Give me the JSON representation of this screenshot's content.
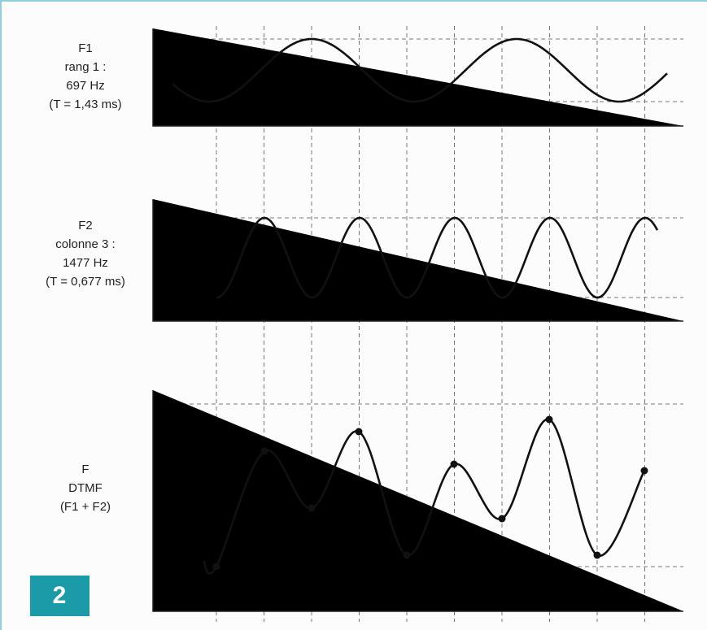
{
  "panels": [
    {
      "lines": [
        "F1",
        "rang 1 :",
        "697 Hz",
        "(T = 1,43 ms)"
      ]
    },
    {
      "lines": [
        "F2",
        "colonne 3 :",
        "1477 Hz",
        "(T = 0,677 ms)"
      ]
    },
    {
      "lines": [
        "F",
        "DTMF",
        "(F1 + F2)"
      ]
    }
  ],
  "badge": "2"
}
